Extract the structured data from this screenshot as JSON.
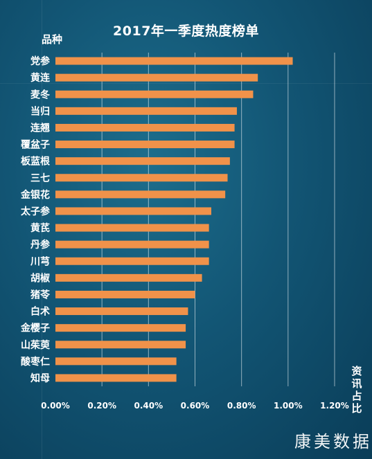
{
  "chart_data": {
    "type": "bar",
    "orientation": "horizontal",
    "title": "2017年一季度热度榜单",
    "ylabel": "品种",
    "xlabel": "资讯占比",
    "xlim": [
      0,
      1.2
    ],
    "xticks": [
      "0.00%",
      "0.20%",
      "0.40%",
      "0.60%",
      "0.80%",
      "1.00%",
      "1.20%"
    ],
    "grid": "vertical",
    "bar_color": "#f0924a",
    "categories": [
      "党参",
      "黄连",
      "麦冬",
      "当归",
      "连翘",
      "覆盆子",
      "板蓝根",
      "三七",
      "金银花",
      "太子参",
      "黄芪",
      "丹参",
      "川芎",
      "胡椒",
      "猪苓",
      "白术",
      "金樱子",
      "山茱萸",
      "酸枣仁",
      "知母"
    ],
    "values": [
      1.02,
      0.87,
      0.85,
      0.78,
      0.77,
      0.77,
      0.75,
      0.74,
      0.73,
      0.67,
      0.66,
      0.66,
      0.66,
      0.63,
      0.6,
      0.57,
      0.56,
      0.56,
      0.52,
      0.52
    ]
  },
  "watermark": "康美数据"
}
